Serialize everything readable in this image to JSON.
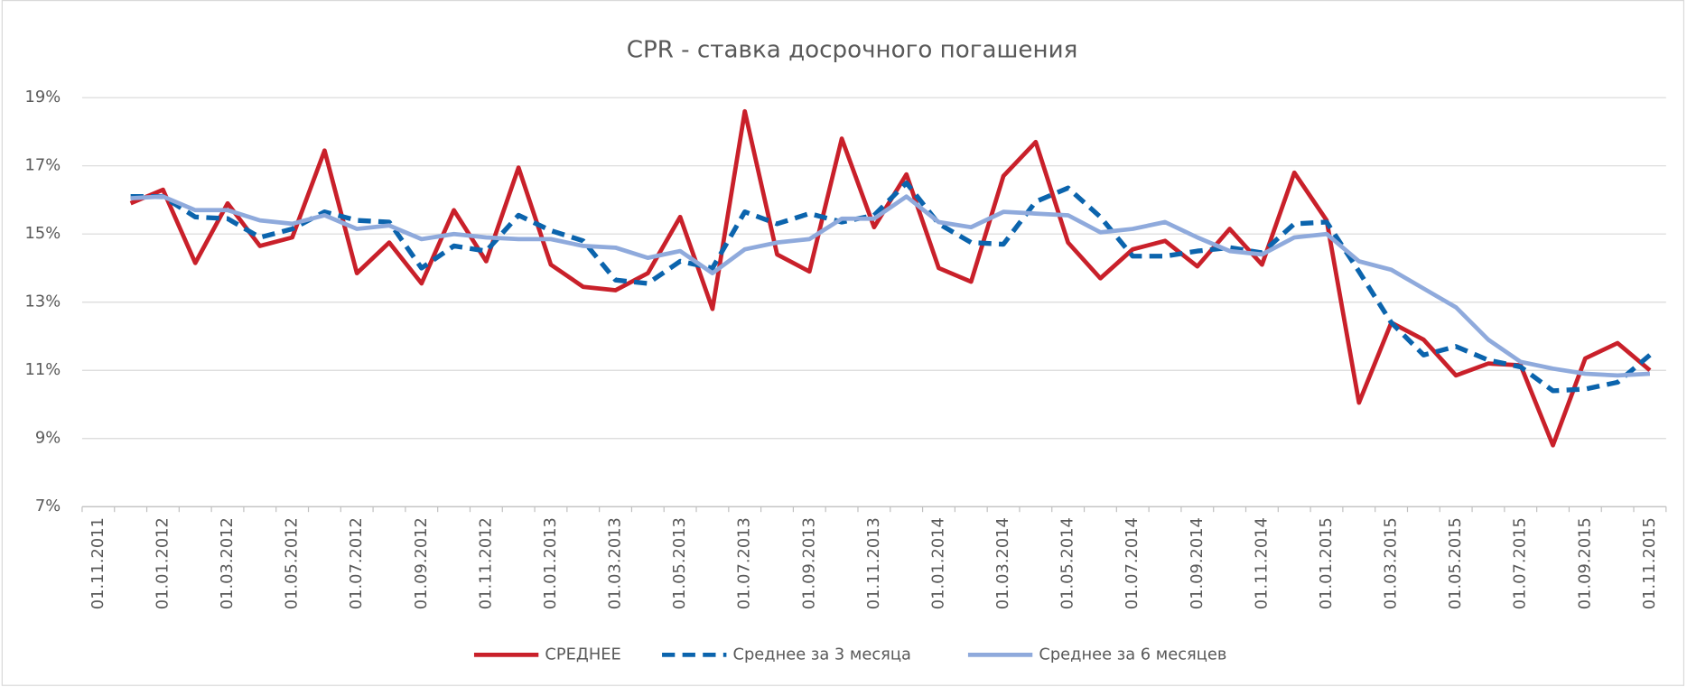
{
  "chart_data": {
    "type": "line",
    "title": "CPR - ставка досрочного погашения",
    "categories": [
      "01.11.2011",
      null,
      "01.01.2012",
      null,
      "01.03.2012",
      null,
      "01.05.2012",
      null,
      "01.07.2012",
      null,
      "01.09.2012",
      null,
      "01.11.2012",
      null,
      "01.01.2013",
      null,
      "01.03.2013",
      null,
      "01.05.2013",
      null,
      "01.07.2013",
      null,
      "01.09.2013",
      null,
      "01.11.2013",
      null,
      "01.01.2014",
      null,
      "01.03.2014",
      null,
      "01.05.2014",
      null,
      "01.07.2014",
      null,
      "01.09.2014",
      null,
      "01.11.2014",
      null,
      "01.01.2015",
      null,
      "01.03.2015",
      null,
      "01.05.2015",
      null,
      "01.07.2015",
      null,
      "01.09.2015",
      null,
      "01.11.2015"
    ],
    "series": [
      {
        "name": "СРЕДНЕЕ",
        "color": "#c9202a",
        "dash": false,
        "values": [
          null,
          15.9,
          16.3,
          14.15,
          15.9,
          14.65,
          14.9,
          17.45,
          13.85,
          14.75,
          13.55,
          15.7,
          14.2,
          16.95,
          14.1,
          13.45,
          13.35,
          13.85,
          15.5,
          12.8,
          18.6,
          14.4,
          13.9,
          17.8,
          15.2,
          16.75,
          14.0,
          13.6,
          16.7,
          17.7,
          14.75,
          13.7,
          14.55,
          14.8,
          14.05,
          15.15,
          14.1,
          16.8,
          15.4,
          10.05,
          12.4,
          11.9,
          10.85,
          11.2,
          11.15,
          8.8,
          11.35,
          11.8,
          11.0
        ]
      },
      {
        "name": "Среднее за 3 месяца",
        "color": "#0b64ad",
        "dash": true,
        "values": [
          null,
          16.1,
          16.1,
          15.5,
          15.45,
          14.9,
          15.15,
          15.65,
          15.4,
          15.35,
          14.0,
          14.65,
          14.5,
          15.55,
          15.1,
          14.8,
          13.65,
          13.55,
          14.2,
          14.0,
          15.65,
          15.3,
          15.6,
          15.35,
          15.55,
          16.5,
          15.3,
          14.75,
          14.7,
          15.95,
          16.35,
          15.5,
          14.35,
          14.35,
          14.5,
          14.6,
          14.45,
          15.3,
          15.35,
          13.9,
          12.4,
          11.45,
          11.7,
          11.3,
          11.1,
          10.4,
          10.45,
          10.65,
          11.45
        ]
      },
      {
        "name": "Среднее за 6 месяцев",
        "color": "#8faadc",
        "dash": false,
        "values": [
          null,
          16.05,
          16.1,
          15.7,
          15.7,
          15.4,
          15.3,
          15.55,
          15.15,
          15.25,
          14.85,
          15.0,
          14.9,
          14.85,
          14.85,
          14.65,
          14.6,
          14.3,
          14.5,
          13.85,
          14.55,
          14.75,
          14.85,
          15.45,
          15.45,
          16.1,
          15.35,
          15.2,
          15.65,
          15.6,
          15.55,
          15.05,
          15.15,
          15.35,
          14.9,
          14.5,
          14.4,
          14.9,
          15.0,
          14.2,
          13.95,
          13.4,
          12.85,
          11.9,
          11.25,
          11.05,
          10.9,
          10.85,
          10.9
        ]
      }
    ],
    "ylim": [
      7,
      19
    ],
    "yticks": [
      {
        "value": 7,
        "label": "7%"
      },
      {
        "value": 9,
        "label": "9%"
      },
      {
        "value": 11,
        "label": "11%"
      },
      {
        "value": 13,
        "label": "13%"
      },
      {
        "value": 15,
        "label": "15%"
      },
      {
        "value": 17,
        "label": "17%"
      },
      {
        "value": 19,
        "label": "19%"
      }
    ],
    "grid": true,
    "legend": "bottom"
  }
}
